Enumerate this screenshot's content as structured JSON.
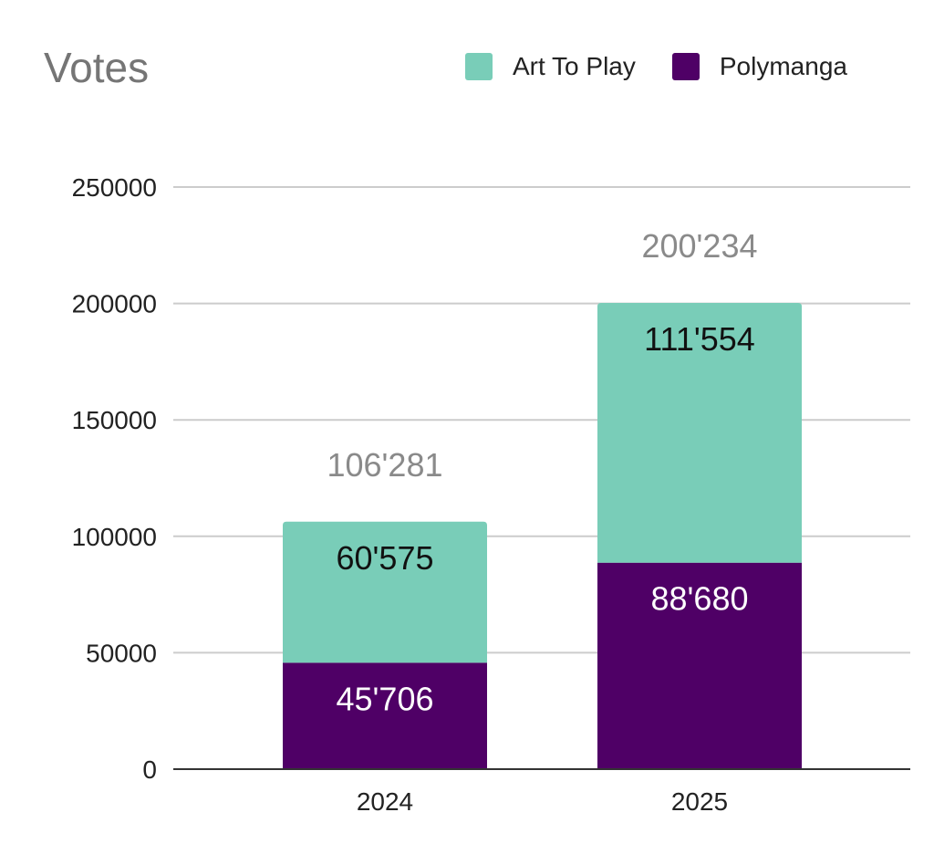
{
  "chart_data": {
    "type": "bar",
    "stacked": true,
    "title": "Votes",
    "xlabel": "",
    "ylabel": "",
    "categories": [
      "2024",
      "2025"
    ],
    "series": [
      {
        "name": "Polymanga",
        "values": [
          45706,
          88680
        ],
        "labels": [
          "45'706",
          "88'680"
        ],
        "color": "#4f0066",
        "label_color": "#ffffff"
      },
      {
        "name": "Art To Play",
        "values": [
          60575,
          111554
        ],
        "labels": [
          "60'575",
          "111'554"
        ],
        "color": "#79cdb8",
        "label_color": "#111111"
      }
    ],
    "totals": [
      106281,
      200234
    ],
    "total_labels": [
      "106'281",
      "200'234"
    ],
    "ylim": [
      0,
      250000
    ],
    "yticks": [
      0,
      50000,
      100000,
      150000,
      200000,
      250000
    ],
    "ytick_labels": [
      "0",
      "50000",
      "100000",
      "150000",
      "200000",
      "250000"
    ],
    "grid": true,
    "legend_position": "top-right",
    "legend_order": [
      "Art To Play",
      "Polymanga"
    ]
  }
}
